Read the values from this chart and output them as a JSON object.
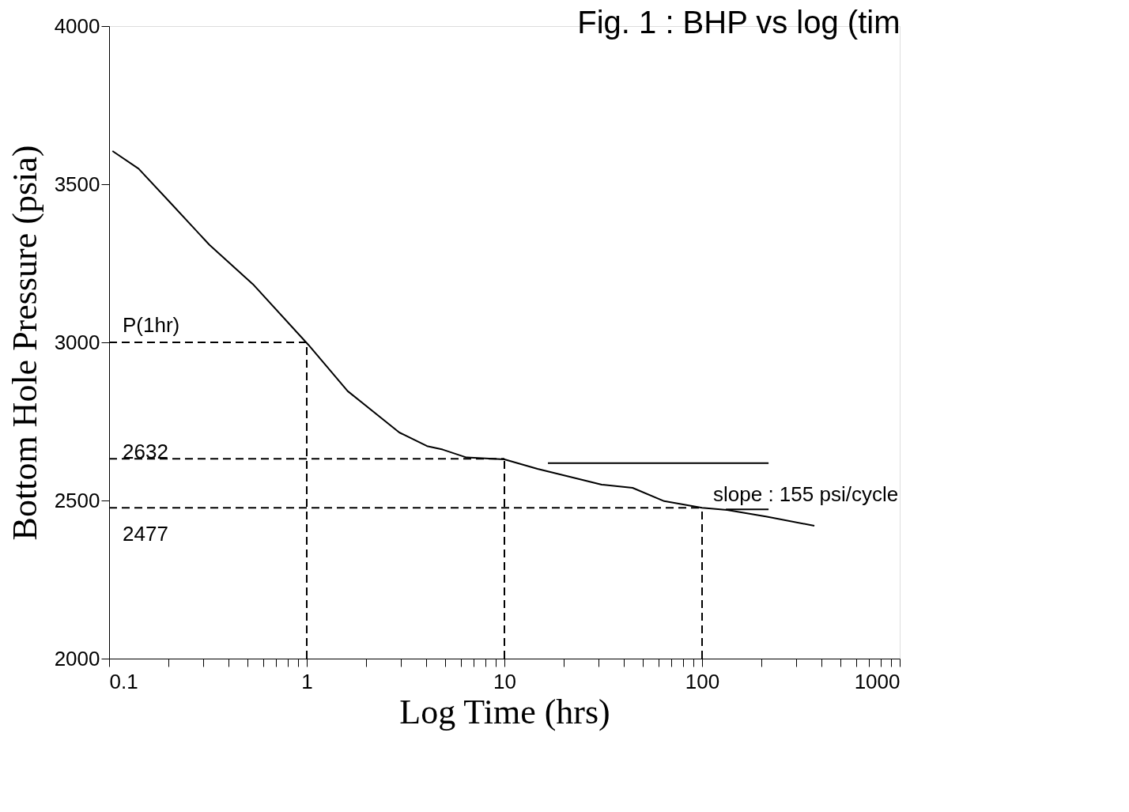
{
  "chart_data": {
    "type": "line",
    "title": "Fig. 1 : BHP vs log (tim",
    "xlabel": "Log Time   (hrs)",
    "ylabel": "Bottom Hole Pressure   (psia)",
    "log": "x",
    "grid": false,
    "marker": "none",
    "xlim": [
      0.1,
      1000
    ],
    "ylim": [
      2000,
      4000
    ],
    "xticks": [
      {
        "value": 0.1,
        "label": "0.1"
      },
      {
        "value": 0.2,
        "label": null
      },
      {
        "value": 0.3,
        "label": null
      },
      {
        "value": 0.4,
        "label": null
      },
      {
        "value": 0.5,
        "label": null
      },
      {
        "value": 0.6,
        "label": null
      },
      {
        "value": 0.7,
        "label": null
      },
      {
        "value": 0.8,
        "label": null
      },
      {
        "value": 0.9,
        "label": null
      },
      1,
      {
        "value": 2,
        "label": null
      },
      {
        "value": 3,
        "label": null
      },
      {
        "value": 4,
        "label": null
      },
      {
        "value": 5,
        "label": null
      },
      {
        "value": 6,
        "label": null
      },
      {
        "value": 7,
        "label": null
      },
      {
        "value": 8,
        "label": null
      },
      {
        "value": 9,
        "label": null
      },
      10,
      {
        "value": 20,
        "label": null
      },
      {
        "value": 30,
        "label": null
      },
      {
        "value": 40,
        "label": null
      },
      {
        "value": 50,
        "label": null
      },
      {
        "value": 60,
        "label": null
      },
      {
        "value": 70,
        "label": null
      },
      {
        "value": 80,
        "label": null
      },
      {
        "value": 90,
        "label": null
      },
      100,
      {
        "value": 200,
        "label": null
      },
      {
        "value": 300,
        "label": null
      },
      {
        "value": 400,
        "label": null
      },
      {
        "value": 500,
        "label": null
      },
      {
        "value": 600,
        "label": null
      },
      {
        "value": 700,
        "label": null
      },
      {
        "value": 800,
        "label": null
      },
      {
        "value": 900,
        "label": null
      },
      1000
    ],
    "yticks": [
      2000,
      2500,
      3000,
      3500,
      4000
    ],
    "series": [
      {
        "color": "#000000",
        "line_style": "solid",
        "x": [
          0.104,
          0.141,
          0.203,
          0.322,
          0.534,
          1.02,
          1.61,
          2.94,
          4.06,
          4.87,
          6.43,
          10,
          14.7,
          21.4,
          31.1,
          44.5,
          64.3,
          100,
          134,
          213,
          370
        ],
        "values": [
          3605,
          3549,
          3443,
          3308,
          3184,
          2992,
          2846,
          2715,
          2672,
          2661,
          2636,
          2630,
          2600,
          2575,
          2550,
          2540,
          2498,
          2477,
          2470,
          2449,
          2420
        ]
      },
      {
        "color": "#000000",
        "line_style": "solid",
        "x": [
          16.6,
          217
        ],
        "values": [
          2618,
          2618
        ]
      },
      {
        "color": "#000000",
        "line_style": "solid",
        "x": [
          132,
          217
        ],
        "values": [
          2472,
          2472
        ]
      },
      {
        "color": "#000000",
        "line_style": "dashed",
        "x": [
          0.1,
          1
        ],
        "values": [
          3000,
          3000
        ]
      },
      {
        "color": "#000000",
        "line_style": "dashed",
        "x": [
          1,
          1
        ],
        "values": [
          2000,
          3000
        ]
      },
      {
        "color": "#000000",
        "line_style": "dashed",
        "x": [
          0.1,
          10
        ],
        "values": [
          2632,
          2632
        ]
      },
      {
        "color": "#000000",
        "line_style": "dashed",
        "x": [
          10,
          10
        ],
        "values": [
          2000,
          2632
        ]
      },
      {
        "color": "#000000",
        "line_style": "dashed",
        "x": [
          0.1,
          100
        ],
        "values": [
          2477,
          2477
        ]
      },
      {
        "color": "#000000",
        "line_style": "dashed",
        "x": [
          100,
          100
        ],
        "values": [
          2000,
          2477
        ]
      }
    ],
    "annotations": [
      "P(1hr)",
      "2632",
      "2477",
      "slope : 155 psi/cycle"
    ]
  }
}
